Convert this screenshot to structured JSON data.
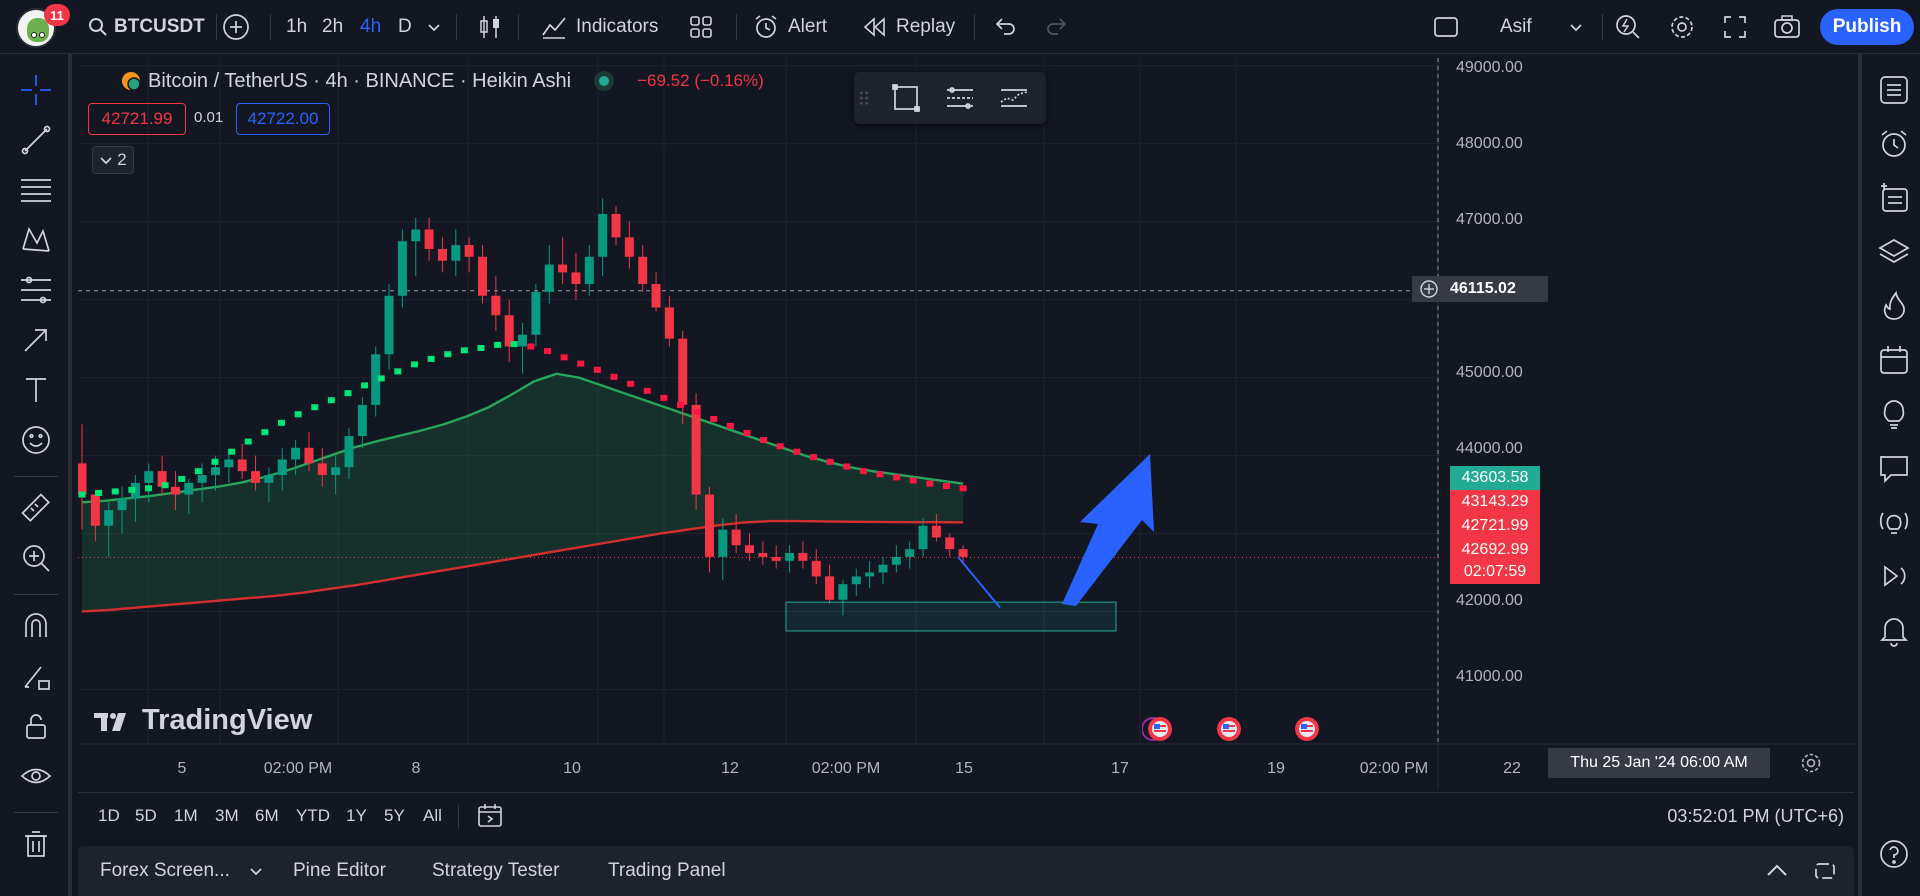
{
  "header": {
    "notification_count": "11",
    "symbol": "BTCUSDT",
    "timeframes": [
      "1h",
      "2h",
      "4h",
      "D"
    ],
    "active_timeframe": "4h",
    "indicators_label": "Indicators",
    "alert_label": "Alert",
    "replay_label": "Replay",
    "account_name": "Asif",
    "publish_label": "Publish"
  },
  "legend": {
    "title": "Bitcoin / TetherUS · 4h · BINANCE · Heikin Ashi",
    "change": "−69.52 (−0.16%)",
    "bid": "42721.99",
    "spread": "0.01",
    "ask": "42722.00",
    "collapsed_count": "2"
  },
  "watermark": "TradingView",
  "colors": {
    "up": "#089981",
    "down": "#f23645",
    "accent": "#2962ff",
    "ma_green": "#26a65b",
    "ma_red": "#d32f2f"
  },
  "price_axis": {
    "labels": [
      "49000.00",
      "48000.00",
      "47000.00",
      "46115.02",
      "45000.00",
      "44000.00",
      "43603.58",
      "43143.29",
      "42721.99",
      "42692.99",
      "02:07:59",
      "42000.00",
      "41000.00"
    ]
  },
  "time_axis": {
    "labels": [
      "5",
      "02:00 PM",
      "8",
      "10",
      "12",
      "02:00 PM",
      "15",
      "17",
      "19",
      "02:00 PM",
      "22"
    ],
    "cursor_label": "Thu 25 Jan '24   06:00 AM"
  },
  "range_bar": {
    "ranges": [
      "1D",
      "5D",
      "1M",
      "3M",
      "6M",
      "YTD",
      "1Y",
      "5Y",
      "All"
    ],
    "clock": "03:52:01 PM (UTC+6)"
  },
  "bottom_panel": {
    "tabs": [
      "Forex Screen...",
      "Pine Editor",
      "Strategy Tester",
      "Trading Panel"
    ]
  },
  "chart_data": {
    "type": "candlestick",
    "symbol": "BTCUSDT",
    "interval": "4h",
    "style": "Heikin Ashi",
    "ylim": [
      40300,
      49100
    ],
    "y_ticks": [
      41000,
      42000,
      43000,
      44000,
      45000,
      46000,
      47000,
      48000,
      49000
    ],
    "grid": true,
    "candles_ohlc": [
      [
        43900,
        44400,
        43050,
        43500
      ],
      [
        43500,
        43550,
        42900,
        43100
      ],
      [
        43100,
        43400,
        42700,
        43300
      ],
      [
        43300,
        43600,
        43000,
        43450
      ],
      [
        43450,
        43750,
        43150,
        43650
      ],
      [
        43650,
        43900,
        43400,
        43800
      ],
      [
        43800,
        44000,
        43500,
        43600
      ],
      [
        43600,
        43800,
        43300,
        43500
      ],
      [
        43500,
        43700,
        43250,
        43650
      ],
      [
        43650,
        43900,
        43400,
        43750
      ],
      [
        43750,
        44000,
        43550,
        43850
      ],
      [
        43850,
        44050,
        43650,
        43950
      ],
      [
        43950,
        44150,
        43700,
        43800
      ],
      [
        43800,
        44000,
        43550,
        43650
      ],
      [
        43650,
        43850,
        43400,
        43750
      ],
      [
        43750,
        44100,
        43550,
        43950
      ],
      [
        43950,
        44200,
        43750,
        44100
      ],
      [
        44100,
        44300,
        43800,
        43900
      ],
      [
        43900,
        44100,
        43600,
        43750
      ],
      [
        43750,
        44000,
        43500,
        43850
      ],
      [
        43850,
        44350,
        43700,
        44250
      ],
      [
        44250,
        44750,
        44100,
        44650
      ],
      [
        44650,
        45400,
        44500,
        45300
      ],
      [
        45300,
        46200,
        45100,
        46050
      ],
      [
        46050,
        46900,
        45900,
        46750
      ],
      [
        46750,
        47050,
        46300,
        46900
      ],
      [
        46900,
        47050,
        46500,
        46650
      ],
      [
        46650,
        46800,
        46350,
        46500
      ],
      [
        46500,
        46900,
        46300,
        46700
      ],
      [
        46700,
        46800,
        46350,
        46550
      ],
      [
        46550,
        46700,
        45950,
        46050
      ],
      [
        46050,
        46300,
        45600,
        45800
      ],
      [
        45800,
        46000,
        45200,
        45400
      ],
      [
        45400,
        45700,
        45050,
        45550
      ],
      [
        45550,
        46200,
        45400,
        46100
      ],
      [
        46100,
        46700,
        45950,
        46450
      ],
      [
        46450,
        46800,
        46200,
        46350
      ],
      [
        46350,
        46600,
        46000,
        46200
      ],
      [
        46200,
        46700,
        46050,
        46550
      ],
      [
        46550,
        47300,
        46300,
        47100
      ],
      [
        47100,
        47200,
        46700,
        46800
      ],
      [
        46800,
        47000,
        46400,
        46550
      ],
      [
        46550,
        46700,
        46100,
        46200
      ],
      [
        46200,
        46350,
        45850,
        45900
      ],
      [
        45900,
        46050,
        45400,
        45500
      ],
      [
        45500,
        45600,
        44400,
        44650
      ],
      [
        44650,
        44800,
        43300,
        43500
      ],
      [
        43500,
        43600,
        42500,
        42700
      ],
      [
        42700,
        43200,
        42400,
        43050
      ],
      [
        43050,
        43250,
        42750,
        42850
      ],
      [
        42850,
        43000,
        42650,
        42750
      ],
      [
        42750,
        42900,
        42600,
        42700
      ],
      [
        42700,
        42850,
        42550,
        42650
      ],
      [
        42650,
        42850,
        42500,
        42750
      ],
      [
        42750,
        42900,
        42550,
        42650
      ],
      [
        42650,
        42800,
        42350,
        42450
      ],
      [
        42450,
        42600,
        42100,
        42150
      ],
      [
        42150,
        42400,
        41950,
        42350
      ],
      [
        42350,
        42550,
        42200,
        42450
      ],
      [
        42450,
        42650,
        42300,
        42500
      ],
      [
        42500,
        42700,
        42350,
        42600
      ],
      [
        42600,
        42850,
        42500,
        42700
      ],
      [
        42700,
        42900,
        42550,
        42800
      ],
      [
        42800,
        43200,
        42700,
        43100
      ],
      [
        43100,
        43250,
        42900,
        42950
      ],
      [
        42950,
        43000,
        42700,
        42800
      ],
      [
        42800,
        42850,
        42600,
        42700
      ]
    ],
    "sma_green": [
      43400,
      43420,
      43450,
      43480,
      43520,
      43560,
      43600,
      43650,
      43720,
      43800,
      43900,
      44000,
      44100,
      44180,
      44250,
      44320,
      44400,
      44500,
      44620,
      44780,
      44950,
      45050,
      45000,
      44900,
      44800,
      44700,
      44600,
      44500,
      44400,
      44300,
      44200,
      44100,
      44000,
      43920,
      43850,
      43800,
      43760,
      43720,
      43680,
      43640
    ],
    "sma_red": [
      42000,
      42020,
      42050,
      42080,
      42110,
      42140,
      42170,
      42200,
      42240,
      42290,
      42340,
      42400,
      42460,
      42520,
      42580,
      42640,
      42700,
      42760,
      42820,
      42880,
      42940,
      43000,
      43050,
      43100,
      43140,
      43160,
      43160,
      43155,
      43150,
      43148,
      43146,
      43145,
      43143
    ],
    "trail_dots": [
      43500,
      43520,
      43540,
      43560,
      43580,
      43620,
      43700,
      43800,
      43920,
      44050,
      44180,
      44300,
      44420,
      44530,
      44620,
      44710,
      44800,
      44900,
      44990,
      45080,
      45170,
      45240,
      45300,
      45350,
      45380,
      45420,
      45430,
      45400,
      45340,
      45260,
      45180,
      45100,
      45010,
      44920,
      44830,
      44740,
      44650,
      44560,
      44470,
      44380,
      44290,
      44200,
      44120,
      44050,
      43980,
      43920,
      43860,
      43800,
      43760,
      43720,
      43680,
      43640,
      43610,
      43580
    ],
    "trail_switch_index": 27,
    "crosshair_price": 46115.02,
    "current_price": 42692.99,
    "support_zone": [
      41750,
      42120
    ],
    "annotations": [
      "support-zone-rectangle",
      "projection-arrow-up"
    ]
  }
}
